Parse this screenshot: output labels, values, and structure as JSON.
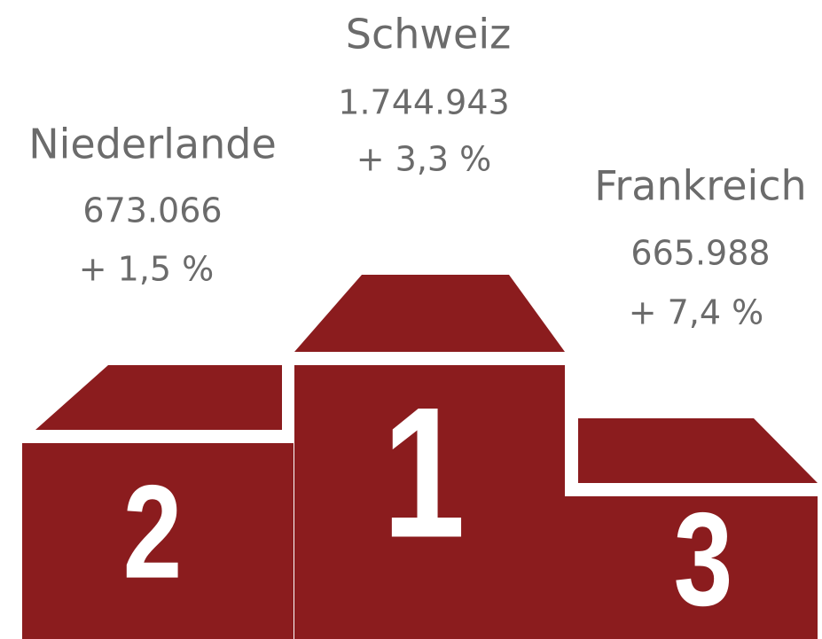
{
  "places": [
    {
      "rank": "1",
      "country": "Schweiz",
      "value": "1.744.943",
      "change": "+ 3,3 %"
    },
    {
      "rank": "2",
      "country": "Niederlande",
      "value": "673.066",
      "change": "+ 1,5 %"
    },
    {
      "rank": "3",
      "country": "Frankreich",
      "value": "665.988",
      "change": "+ 7,4 %"
    }
  ]
}
